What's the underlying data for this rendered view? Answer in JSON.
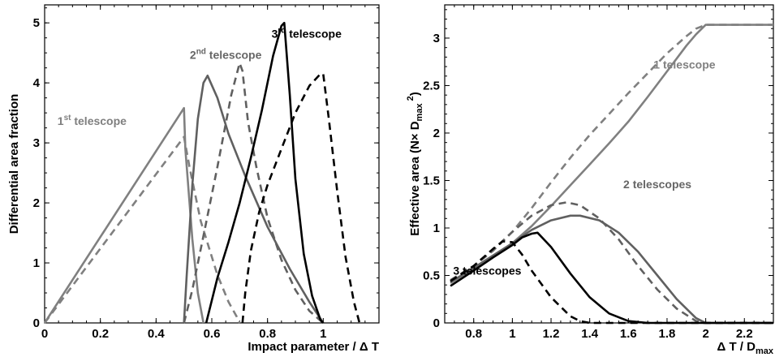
{
  "chart_data": [
    {
      "type": "line",
      "xlabel": "Impact parameter / Δ T",
      "ylabel": "Differential area fraction",
      "xlim": [
        0,
        1.2
      ],
      "ylim": [
        0,
        5.3
      ],
      "xticks": [
        0,
        0.2,
        0.4,
        0.6,
        0.8,
        1
      ],
      "xtick_labels": [
        "0",
        "0.2",
        "0.4",
        "0.6",
        "0.8",
        "1"
      ],
      "yticks": [
        0,
        1,
        2,
        3,
        4,
        5
      ],
      "ytick_labels": [
        "0",
        "1",
        "2",
        "3",
        "4",
        "5"
      ],
      "grid": false,
      "annotations": [
        {
          "base": "1",
          "sup": "st",
          "rest": " telescope",
          "color": "#7f7f7f",
          "x": 0.17,
          "y": 3.3
        },
        {
          "base": "2",
          "sup": "nd",
          "rest": " telescope",
          "color": "#666666",
          "x": 0.65,
          "y": 4.4
        },
        {
          "base": "3",
          "sup": "rd",
          "rest": " telescope",
          "color": "#000000",
          "x": 0.94,
          "y": 4.75
        }
      ],
      "series": [
        {
          "color": "#808080",
          "dash": false,
          "x": [
            0,
            0.5,
            0.505,
            0.53,
            0.55,
            0.57
          ],
          "y": [
            0,
            3.58,
            2.9,
            1.4,
            0.5,
            0
          ]
        },
        {
          "color": "#808080",
          "dash": true,
          "x": [
            0,
            0.5,
            0.52,
            0.56,
            0.62,
            0.66,
            0.69,
            0.7
          ],
          "y": [
            0,
            3.1,
            2.6,
            1.7,
            0.8,
            0.35,
            0.1,
            0
          ]
        },
        {
          "color": "#606060",
          "dash": false,
          "x": [
            0.5,
            0.51,
            0.53,
            0.55,
            0.57,
            0.585,
            0.62,
            0.66,
            0.72,
            0.8,
            0.88,
            0.95,
            1.0
          ],
          "y": [
            0,
            0.8,
            2.3,
            3.4,
            4.0,
            4.12,
            3.75,
            3.15,
            2.45,
            1.6,
            0.9,
            0.35,
            0
          ]
        },
        {
          "color": "#606060",
          "dash": true,
          "x": [
            0.5,
            0.53,
            0.57,
            0.62,
            0.67,
            0.7,
            0.71,
            0.73,
            0.76,
            0.8,
            0.85,
            0.9,
            0.95,
            1.0
          ],
          "y": [
            0,
            0.55,
            1.45,
            2.6,
            3.8,
            4.33,
            4.2,
            3.35,
            2.6,
            1.75,
            1.05,
            0.55,
            0.2,
            0
          ]
        },
        {
          "color": "#000000",
          "dash": false,
          "x": [
            0.58,
            0.62,
            0.66,
            0.7,
            0.74,
            0.78,
            0.82,
            0.85,
            0.86,
            0.88,
            0.9,
            0.93,
            0.96,
            0.99,
            1.0
          ],
          "y": [
            0,
            0.75,
            1.35,
            2.0,
            2.75,
            3.55,
            4.45,
            4.95,
            5.0,
            3.8,
            2.4,
            1.15,
            0.45,
            0.05,
            0
          ]
        },
        {
          "color": "#000000",
          "dash": true,
          "x": [
            0.71,
            0.72,
            0.74,
            0.77,
            0.8,
            0.85,
            0.9,
            0.95,
            0.99,
            1.0,
            1.02,
            1.05,
            1.08,
            1.11,
            1.13
          ],
          "y": [
            0,
            0.5,
            1.2,
            1.85,
            2.3,
            2.9,
            3.5,
            3.95,
            4.15,
            4.15,
            3.4,
            2.2,
            1.1,
            0.35,
            0
          ]
        }
      ]
    },
    {
      "type": "line",
      "xlabel": "Δ T / D_max",
      "ylabel": "Effective area (N× D_max ²)",
      "xlim": [
        0.65,
        2.35
      ],
      "ylim": [
        0,
        3.35
      ],
      "xticks": [
        0.8,
        1,
        1.2,
        1.4,
        1.6,
        1.8,
        2,
        2.2
      ],
      "xtick_labels": [
        "0.8",
        "1",
        "1.2",
        "1.4",
        "1.6",
        "1.8",
        "2",
        "2.2"
      ],
      "yticks": [
        0,
        0.5,
        1,
        1.5,
        2,
        2.5,
        3
      ],
      "ytick_labels": [
        "0",
        "0.5",
        "1",
        "1.5",
        "2",
        "2.5",
        "3"
      ],
      "grid": false,
      "annotations": [
        {
          "text": "1 telescope",
          "color": "#808080",
          "x": 1.89,
          "y": 2.68
        },
        {
          "text": "2 telescopes",
          "color": "#666666",
          "x": 1.75,
          "y": 1.42
        },
        {
          "text": "3 telescopes",
          "color": "#000000",
          "x": 0.87,
          "y": 0.51
        }
      ],
      "series": [
        {
          "color": "#808080",
          "dash": false,
          "x": [
            0.68,
            0.8,
            0.9,
            1.0,
            1.1,
            1.2,
            1.3,
            1.4,
            1.5,
            1.6,
            1.7,
            1.8,
            1.9,
            1.95,
            2.0,
            2.35
          ],
          "y": [
            0.42,
            0.57,
            0.7,
            0.84,
            1.02,
            1.23,
            1.45,
            1.67,
            1.89,
            2.12,
            2.38,
            2.65,
            2.92,
            3.04,
            3.14,
            3.14
          ]
        },
        {
          "color": "#808080",
          "dash": true,
          "x": [
            0.68,
            0.8,
            0.9,
            1.0,
            1.1,
            1.2,
            1.3,
            1.4,
            1.5,
            1.6,
            1.7,
            1.8,
            1.9,
            1.95,
            2.0,
            2.35
          ],
          "y": [
            0.45,
            0.6,
            0.76,
            0.96,
            1.21,
            1.48,
            1.74,
            1.98,
            2.2,
            2.42,
            2.63,
            2.84,
            3.02,
            3.1,
            3.14,
            3.14
          ]
        },
        {
          "color": "#606060",
          "dash": false,
          "x": [
            0.68,
            0.8,
            0.9,
            1.0,
            1.1,
            1.2,
            1.3,
            1.35,
            1.45,
            1.55,
            1.65,
            1.75,
            1.85,
            1.95,
            2.0,
            2.35
          ],
          "y": [
            0.43,
            0.58,
            0.71,
            0.84,
            0.98,
            1.08,
            1.13,
            1.13,
            1.08,
            0.95,
            0.75,
            0.5,
            0.25,
            0.05,
            0,
            0
          ]
        },
        {
          "color": "#606060",
          "dash": true,
          "x": [
            0.68,
            0.8,
            0.9,
            1.0,
            1.1,
            1.2,
            1.28,
            1.35,
            1.45,
            1.55,
            1.65,
            1.75,
            1.85,
            1.95,
            2.0,
            2.35
          ],
          "y": [
            0.45,
            0.6,
            0.77,
            0.96,
            1.13,
            1.24,
            1.27,
            1.24,
            1.1,
            0.88,
            0.6,
            0.35,
            0.15,
            0.02,
            0,
            0
          ]
        },
        {
          "color": "#000000",
          "dash": false,
          "x": [
            0.68,
            0.8,
            0.9,
            1.0,
            1.05,
            1.1,
            1.13,
            1.2,
            1.3,
            1.4,
            1.5,
            1.6,
            1.7,
            2.35
          ],
          "y": [
            0.39,
            0.55,
            0.69,
            0.82,
            0.9,
            0.94,
            0.95,
            0.8,
            0.52,
            0.27,
            0.1,
            0.02,
            0,
            0
          ]
        },
        {
          "color": "#000000",
          "dash": true,
          "x": [
            0.68,
            0.8,
            0.9,
            0.95,
            1.0,
            1.05,
            1.1,
            1.2,
            1.3,
            1.35,
            1.4,
            2.35
          ],
          "y": [
            0.44,
            0.6,
            0.78,
            0.86,
            0.85,
            0.72,
            0.55,
            0.27,
            0.07,
            0.02,
            0,
            0
          ]
        }
      ]
    }
  ]
}
